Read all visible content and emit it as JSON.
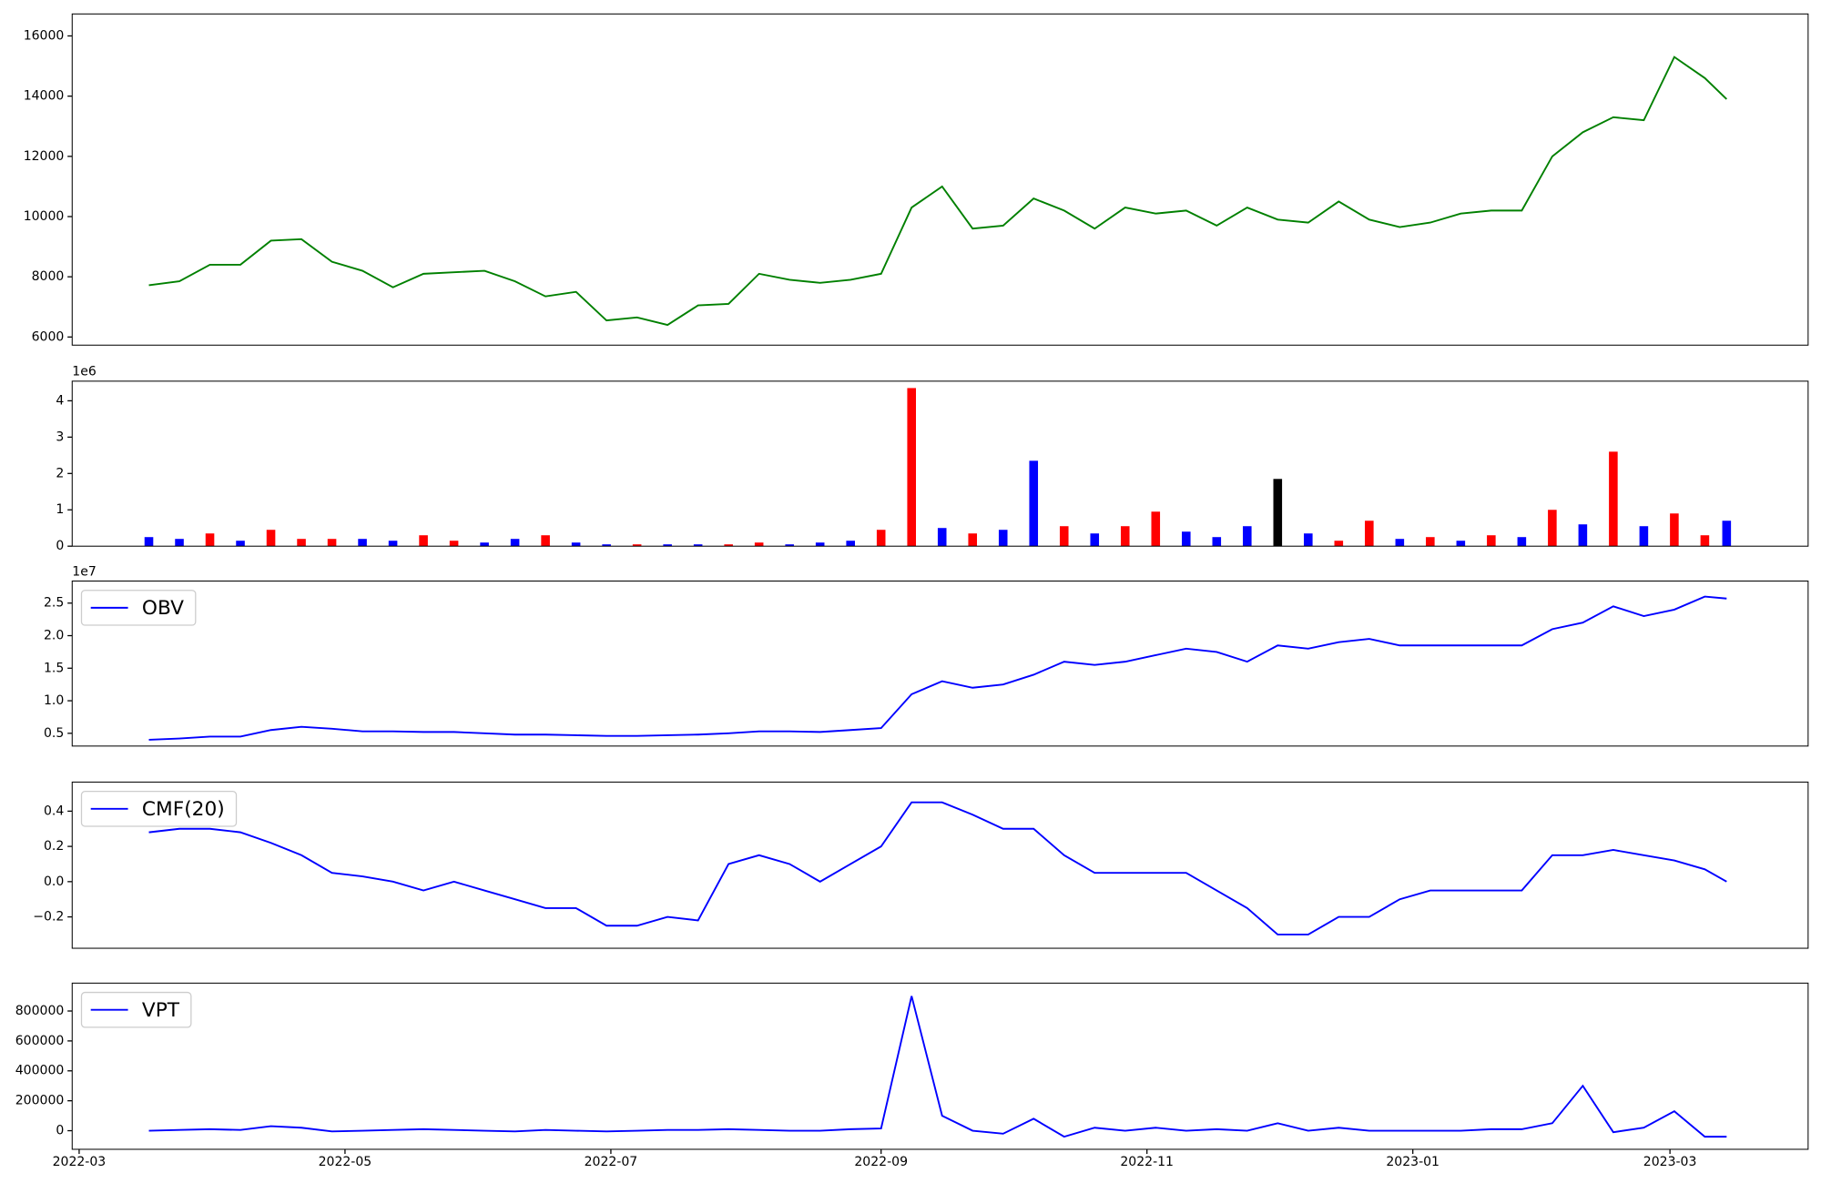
{
  "chart_data": [
    {
      "type": "line",
      "x": [
        19068,
        19075,
        19082,
        19089,
        19096,
        19103,
        19110,
        19117,
        19124,
        19131,
        19138,
        19145,
        19152,
        19159,
        19166,
        19173,
        19180,
        19187,
        19194,
        19201,
        19208,
        19215,
        19222,
        19229,
        19236,
        19243,
        19250,
        19257,
        19264,
        19271,
        19278,
        19285,
        19292,
        19299,
        19306,
        19313,
        19320,
        19327,
        19334,
        19341,
        19348,
        19355,
        19362,
        19369,
        19376,
        19383,
        19390,
        19397,
        19404,
        19411,
        19418,
        19425,
        19430
      ],
      "values": [
        7720,
        7850,
        8400,
        8400,
        9200,
        9250,
        8500,
        8200,
        7650,
        8100,
        8150,
        8200,
        7850,
        7350,
        7500,
        6550,
        6650,
        6400,
        7050,
        7100,
        8100,
        7900,
        7800,
        7900,
        8100,
        10300,
        11000,
        9600,
        9700,
        10600,
        10200,
        9600,
        10300,
        10100,
        10200,
        9700,
        10300,
        9900,
        9800,
        10500,
        9900,
        9650,
        9800,
        10100,
        10200,
        10200,
        12000,
        12800,
        13300,
        13200,
        15300,
        14600,
        13900
      ],
      "color": "green",
      "xlim": [
        19050.4,
        19448.7
      ],
      "ylim": [
        5730,
        16730
      ],
      "yticks": [
        6000,
        8000,
        10000,
        12000,
        14000,
        16000
      ]
    },
    {
      "type": "bar",
      "x": [
        19068,
        19075,
        19082,
        19089,
        19096,
        19103,
        19110,
        19117,
        19124,
        19131,
        19138,
        19145,
        19152,
        19159,
        19166,
        19173,
        19180,
        19187,
        19194,
        19201,
        19208,
        19215,
        19222,
        19229,
        19236,
        19243,
        19250,
        19257,
        19264,
        19271,
        19278,
        19285,
        19292,
        19299,
        19306,
        19313,
        19320,
        19327,
        19334,
        19341,
        19348,
        19355,
        19362,
        19369,
        19376,
        19383,
        19390,
        19397,
        19404,
        19411,
        19418,
        19425,
        19430
      ],
      "values": [
        250000,
        200000,
        350000,
        150000,
        450000,
        200000,
        200000,
        200000,
        150000,
        300000,
        150000,
        100000,
        200000,
        300000,
        100000,
        50000,
        50000,
        50000,
        50000,
        50000,
        100000,
        50000,
        100000,
        150000,
        450000,
        4350000,
        500000,
        350000,
        450000,
        2350000,
        550000,
        350000,
        550000,
        950000,
        400000,
        250000,
        550000,
        1850000,
        350000,
        150000,
        700000,
        200000,
        250000,
        150000,
        300000,
        250000,
        1000000,
        600000,
        2600000,
        550000,
        900000,
        300000,
        700000
      ],
      "colors": [
        "blue",
        "blue",
        "red",
        "blue",
        "red",
        "red",
        "red",
        "blue",
        "blue",
        "red",
        "red",
        "blue",
        "blue",
        "red",
        "blue",
        "blue",
        "red",
        "blue",
        "blue",
        "red",
        "red",
        "blue",
        "blue",
        "blue",
        "red",
        "red",
        "blue",
        "red",
        "blue",
        "blue",
        "red",
        "blue",
        "red",
        "red",
        "blue",
        "blue",
        "blue",
        "black",
        "blue",
        "red",
        "red",
        "blue",
        "red",
        "blue",
        "red",
        "blue",
        "red",
        "blue",
        "red",
        "blue",
        "red",
        "red",
        "blue"
      ],
      "xlim": [
        19050.4,
        19448.7
      ],
      "ylim": [
        0,
        4540000
      ],
      "offset_text": "1e6",
      "yticks": [
        0,
        {
          "value": 1000000,
          "label": "1"
        },
        {
          "value": 2000000,
          "label": "2"
        },
        {
          "value": 3000000,
          "label": "3"
        },
        {
          "value": 4000000,
          "label": "4"
        }
      ]
    },
    {
      "type": "line",
      "x": [
        19068,
        19075,
        19082,
        19089,
        19096,
        19103,
        19110,
        19117,
        19124,
        19131,
        19138,
        19145,
        19152,
        19159,
        19166,
        19173,
        19180,
        19187,
        19194,
        19201,
        19208,
        19215,
        19222,
        19229,
        19236,
        19243,
        19250,
        19257,
        19264,
        19271,
        19278,
        19285,
        19292,
        19299,
        19306,
        19313,
        19320,
        19327,
        19334,
        19341,
        19348,
        19355,
        19362,
        19369,
        19376,
        19383,
        19390,
        19397,
        19404,
        19411,
        19418,
        19425,
        19430
      ],
      "series": [
        {
          "name": "OBV",
          "color": "blue",
          "values": [
            4000000,
            4200000,
            4500000,
            4500000,
            5500000,
            6000000,
            5700000,
            5300000,
            5300000,
            5200000,
            5200000,
            5000000,
            4800000,
            4800000,
            4700000,
            4600000,
            4600000,
            4700000,
            4800000,
            5000000,
            5300000,
            5300000,
            5200000,
            5500000,
            5800000,
            11000000,
            13000000,
            12000000,
            12500000,
            14000000,
            16000000,
            15500000,
            16000000,
            17000000,
            18000000,
            17500000,
            16000000,
            18500000,
            18000000,
            19000000,
            19500000,
            18500000,
            18500000,
            18500000,
            18500000,
            18500000,
            21000000,
            22000000,
            24500000,
            23000000,
            24000000,
            26000000,
            25700000
          ]
        }
      ],
      "legend": "upper left",
      "xlim": [
        19050.4,
        19448.7
      ],
      "ylim": [
        3040000,
        28390000
      ],
      "offset_text": "1e7",
      "yticks": [
        {
          "value": 5000000,
          "label": "0.5"
        },
        {
          "value": 10000000,
          "label": "1.0"
        },
        {
          "value": 15000000,
          "label": "1.5"
        },
        {
          "value": 20000000,
          "label": "2.0"
        },
        {
          "value": 25000000,
          "label": "2.5"
        }
      ]
    },
    {
      "type": "line",
      "x": [
        19068,
        19075,
        19082,
        19089,
        19096,
        19103,
        19110,
        19117,
        19124,
        19131,
        19138,
        19145,
        19152,
        19159,
        19166,
        19173,
        19180,
        19187,
        19194,
        19201,
        19208,
        19215,
        19222,
        19229,
        19236,
        19243,
        19250,
        19257,
        19264,
        19271,
        19278,
        19285,
        19292,
        19299,
        19306,
        19313,
        19320,
        19327,
        19334,
        19341,
        19348,
        19355,
        19362,
        19369,
        19376,
        19383,
        19390,
        19397,
        19404,
        19411,
        19418,
        19425,
        19430
      ],
      "series": [
        {
          "name": "CMF(20)",
          "color": "blue",
          "values": [
            0.28,
            0.3,
            0.3,
            0.28,
            0.22,
            0.15,
            0.05,
            0.03,
            0.0,
            -0.05,
            0.0,
            -0.05,
            -0.1,
            -0.15,
            -0.15,
            -0.25,
            -0.25,
            -0.2,
            -0.22,
            0.1,
            0.15,
            0.1,
            0.0,
            0.1,
            0.2,
            0.45,
            0.45,
            0.38,
            0.3,
            0.3,
            0.15,
            0.05,
            0.05,
            0.05,
            0.05,
            -0.05,
            -0.15,
            -0.3,
            -0.3,
            -0.2,
            -0.2,
            -0.1,
            -0.05,
            -0.05,
            -0.05,
            -0.05,
            0.15,
            0.15,
            0.18,
            0.15,
            0.12,
            0.07,
            0.0
          ]
        }
      ],
      "legend": "upper left",
      "xlim": [
        19050.4,
        19448.7
      ],
      "ylim": [
        -0.378,
        0.565
      ],
      "yticks": [
        {
          "value": -0.2,
          "label": "−0.2"
        },
        {
          "value": 0,
          "label": "0.0"
        },
        0.2,
        0.4
      ]
    },
    {
      "type": "line",
      "x": [
        19068,
        19075,
        19082,
        19089,
        19096,
        19103,
        19110,
        19117,
        19124,
        19131,
        19138,
        19145,
        19152,
        19159,
        19166,
        19173,
        19180,
        19187,
        19194,
        19201,
        19208,
        19215,
        19222,
        19229,
        19236,
        19243,
        19250,
        19257,
        19264,
        19271,
        19278,
        19285,
        19292,
        19299,
        19306,
        19313,
        19320,
        19327,
        19334,
        19341,
        19348,
        19355,
        19362,
        19369,
        19376,
        19383,
        19390,
        19397,
        19404,
        19411,
        19418,
        19425,
        19430
      ],
      "series": [
        {
          "name": "VPT",
          "color": "blue",
          "values": [
            0,
            5000,
            10000,
            5000,
            30000,
            20000,
            -5000,
            0,
            5000,
            10000,
            5000,
            0,
            -5000,
            5000,
            0,
            -5000,
            0,
            5000,
            5000,
            10000,
            5000,
            0,
            0,
            10000,
            15000,
            900000,
            100000,
            0,
            -20000,
            80000,
            -40000,
            20000,
            0,
            20000,
            0,
            10000,
            0,
            50000,
            0,
            20000,
            0,
            0,
            0,
            0,
            10000,
            10000,
            50000,
            300000,
            -10000,
            20000,
            130000,
            -40000,
            -40000
          ]
        }
      ],
      "legend": "upper left",
      "xlim": [
        19050.4,
        19448.7
      ],
      "ylim": [
        -124300,
        986400
      ],
      "yticks": [
        0,
        200000,
        400000,
        600000,
        800000
      ],
      "xticks": [
        {
          "value": 19052,
          "label": "2022-03"
        },
        {
          "value": 19113,
          "label": "2022-05"
        },
        {
          "value": 19174,
          "label": "2022-07"
        },
        {
          "value": 19236,
          "label": "2022-09"
        },
        {
          "value": 19297,
          "label": "2022-11"
        },
        {
          "value": 19358,
          "label": "2023-01"
        },
        {
          "value": 19417,
          "label": "2023-03"
        }
      ]
    }
  ]
}
